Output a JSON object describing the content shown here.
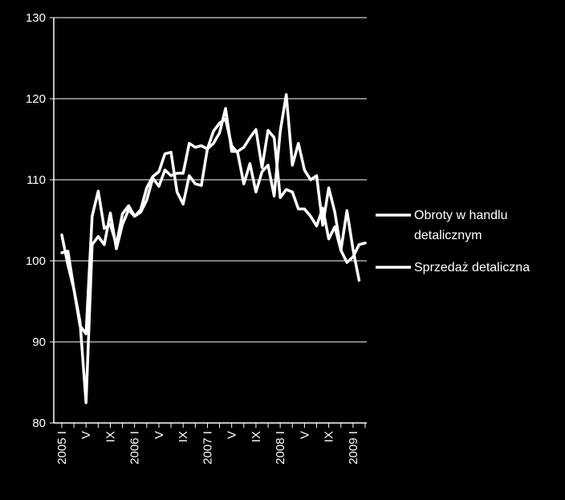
{
  "chart_data": {
    "type": "line",
    "ylim": [
      80,
      130
    ],
    "yticks": [
      80,
      90,
      100,
      110,
      120,
      130
    ],
    "x_labels": [
      {
        "index": 0,
        "label": "2005 I"
      },
      {
        "index": 4,
        "label": "V"
      },
      {
        "index": 8,
        "label": "IX"
      },
      {
        "index": 12,
        "label": "2006 I"
      },
      {
        "index": 16,
        "label": "V"
      },
      {
        "index": 20,
        "label": "IX"
      },
      {
        "index": 24,
        "label": "2007 I"
      },
      {
        "index": 28,
        "label": "V"
      },
      {
        "index": 32,
        "label": "IX"
      },
      {
        "index": 36,
        "label": "2008 I"
      },
      {
        "index": 40,
        "label": "V"
      },
      {
        "index": 44,
        "label": "IX"
      },
      {
        "index": 48,
        "label": "2009 I"
      }
    ],
    "grid": true,
    "legend_position": "right",
    "colors": {
      "background": "#000000",
      "lines": "#ffffff",
      "grid": "#ffffff"
    },
    "series": [
      {
        "name": "Obroty w handlu detalicznym",
        "values": [
          103.2,
          99.5,
          96.5,
          92.5,
          82.5,
          102.0,
          103.0,
          102.0,
          105.9,
          101.5,
          104.5,
          106.3,
          105.5,
          106.0,
          107.5,
          110.2,
          109.2,
          111.2,
          110.5,
          110.8,
          110.8,
          114.5,
          114.0,
          114.2,
          113.8,
          114.5,
          115.8,
          118.8,
          113.5,
          113.5,
          114.0,
          115.2,
          116.2,
          111.5,
          116.1,
          115.2,
          107.8,
          108.8,
          108.5,
          106.4,
          106.4,
          105.5,
          104.3,
          106.5,
          102.7,
          104.2,
          101.3,
          99.8,
          100.5,
          102.0,
          102.2
        ]
      },
      {
        "name": "Sprzedaż detaliczna",
        "values": [
          101.0,
          101.2,
          96.5,
          92.0,
          91.0,
          105.5,
          108.6,
          104.0,
          104.5,
          102.0,
          105.8,
          106.8,
          105.5,
          106.3,
          109.0,
          110.4,
          111.0,
          113.2,
          113.4,
          108.5,
          107.0,
          110.5,
          109.5,
          109.3,
          113.8,
          116.0,
          117.0,
          117.5,
          114.2,
          113.3,
          109.5,
          112.0,
          108.5,
          111.0,
          111.8,
          108.0,
          116.0,
          120.5,
          111.8,
          114.5,
          111.2,
          110.0,
          110.5,
          104.4,
          109.0,
          106.0,
          101.3,
          106.2,
          101.4,
          97.6,
          null
        ]
      }
    ]
  }
}
